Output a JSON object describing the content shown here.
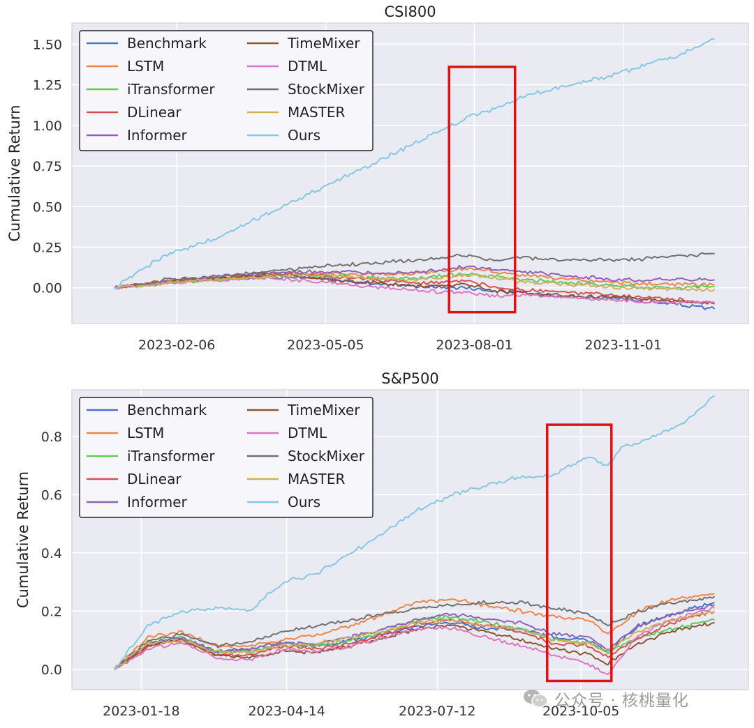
{
  "chart_data": [
    {
      "type": "line",
      "title": "CSI800",
      "ylabel": "Cumulative Return",
      "xlabel": "",
      "ylim": [
        -0.22,
        1.63
      ],
      "yticks": [
        0.0,
        0.25,
        0.5,
        0.75,
        1.0,
        1.25,
        1.5
      ],
      "ytick_labels": [
        "0.00",
        "0.25",
        "0.50",
        "0.75",
        "1.00",
        "1.25",
        "1.50"
      ],
      "xlim": [
        -25,
        375
      ],
      "xticks": [
        {
          "x": 37,
          "label": "2023-02-06"
        },
        {
          "x": 125,
          "label": "2023-05-05"
        },
        {
          "x": 213,
          "label": "2023-08-01"
        },
        {
          "x": 301,
          "label": "2023-11-01"
        }
      ],
      "grid": true,
      "legend_position": "upper left",
      "legend_columns": 2,
      "highlight_box": {
        "x_range": [
          198,
          237
        ],
        "y_range": [
          -0.15,
          1.36
        ],
        "color": "#e01010"
      },
      "series": [
        {
          "name": "Benchmark",
          "color": "#4a72c4",
          "x": [
            0,
            30,
            60,
            90,
            120,
            150,
            180,
            210,
            225,
            240,
            270,
            300,
            330,
            355
          ],
          "values": [
            0,
            0.03,
            0.05,
            0.07,
            0.06,
            0.03,
            0.01,
            0.0,
            -0.02,
            -0.03,
            -0.05,
            -0.07,
            -0.1,
            -0.13
          ]
        },
        {
          "name": "LSTM",
          "color": "#ee8544",
          "x": [
            0,
            30,
            60,
            90,
            120,
            150,
            180,
            210,
            225,
            240,
            270,
            300,
            330,
            355
          ],
          "values": [
            0,
            0.04,
            0.06,
            0.08,
            0.09,
            0.08,
            0.09,
            0.12,
            0.1,
            0.08,
            0.05,
            0.03,
            0.02,
            0.02
          ]
        },
        {
          "name": "iTransformer",
          "color": "#5ccc5c",
          "x": [
            0,
            30,
            60,
            90,
            120,
            150,
            180,
            210,
            225,
            240,
            270,
            300,
            330,
            355
          ],
          "values": [
            0,
            0.03,
            0.05,
            0.07,
            0.08,
            0.06,
            0.06,
            0.09,
            0.07,
            0.05,
            0.03,
            0.01,
            0.0,
            0.01
          ]
        },
        {
          "name": "DLinear",
          "color": "#d65050",
          "x": [
            0,
            30,
            60,
            90,
            120,
            150,
            180,
            210,
            225,
            240,
            270,
            300,
            330,
            355
          ],
          "values": [
            0,
            0.04,
            0.06,
            0.09,
            0.08,
            0.05,
            0.03,
            0.04,
            0.0,
            -0.01,
            -0.03,
            -0.05,
            -0.07,
            -0.1
          ]
        },
        {
          "name": "Informer",
          "color": "#8e61b8",
          "x": [
            0,
            30,
            60,
            90,
            120,
            150,
            180,
            210,
            225,
            240,
            270,
            300,
            330,
            355
          ],
          "values": [
            0,
            0.04,
            0.07,
            0.09,
            0.1,
            0.09,
            0.1,
            0.13,
            0.11,
            0.1,
            0.07,
            0.05,
            0.05,
            0.05
          ]
        },
        {
          "name": "TimeMixer",
          "color": "#8b5533",
          "x": [
            0,
            30,
            60,
            90,
            120,
            150,
            180,
            210,
            225,
            240,
            270,
            300,
            330,
            355
          ],
          "values": [
            0,
            0.04,
            0.06,
            0.08,
            0.06,
            0.03,
            0.01,
            0.02,
            -0.02,
            -0.03,
            -0.05,
            -0.06,
            -0.08,
            -0.09
          ]
        },
        {
          "name": "DTML",
          "color": "#dd77c0",
          "x": [
            0,
            30,
            60,
            90,
            120,
            150,
            180,
            210,
            225,
            240,
            270,
            300,
            330,
            355
          ],
          "values": [
            0,
            0.03,
            0.05,
            0.06,
            0.04,
            0.01,
            -0.02,
            -0.03,
            -0.05,
            -0.04,
            -0.06,
            -0.08,
            -0.09,
            -0.09
          ]
        },
        {
          "name": "StockMixer",
          "color": "#707070",
          "x": [
            0,
            30,
            60,
            90,
            120,
            150,
            180,
            210,
            225,
            240,
            270,
            300,
            330,
            355
          ],
          "values": [
            0,
            0.05,
            0.07,
            0.1,
            0.13,
            0.15,
            0.17,
            0.2,
            0.17,
            0.19,
            0.17,
            0.17,
            0.19,
            0.21
          ]
        },
        {
          "name": "MASTER",
          "color": "#d1ae58",
          "x": [
            0,
            30,
            60,
            90,
            120,
            150,
            180,
            210,
            225,
            240,
            270,
            300,
            330,
            355
          ],
          "values": [
            0,
            0.03,
            0.05,
            0.07,
            0.08,
            0.06,
            0.05,
            0.08,
            0.06,
            0.04,
            0.02,
            0.0,
            -0.01,
            -0.01
          ]
        },
        {
          "name": "Ours",
          "color": "#86c7e3",
          "x": [
            0,
            30,
            60,
            90,
            120,
            150,
            180,
            210,
            225,
            240,
            270,
            300,
            330,
            355
          ],
          "values": [
            0,
            0.2,
            0.3,
            0.45,
            0.6,
            0.75,
            0.9,
            1.05,
            1.1,
            1.17,
            1.25,
            1.32,
            1.42,
            1.53
          ]
        }
      ]
    },
    {
      "type": "line",
      "title": "S&P500",
      "ylabel": "Cumulative Return",
      "xlabel": "",
      "ylim": [
        -0.07,
        0.96
      ],
      "yticks": [
        0.0,
        0.2,
        0.4,
        0.6,
        0.8
      ],
      "ytick_labels": [
        "0.0",
        "0.2",
        "0.4",
        "0.6",
        "0.8"
      ],
      "xlim": [
        -25,
        375
      ],
      "xticks": [
        {
          "x": 16,
          "label": "2023-01-18"
        },
        {
          "x": 102,
          "label": "2023-04-14"
        },
        {
          "x": 191,
          "label": "2023-07-12"
        },
        {
          "x": 276,
          "label": "2023-10-05"
        }
      ],
      "grid": true,
      "legend_position": "upper left",
      "legend_columns": 2,
      "highlight_box": {
        "x_range": [
          256,
          294
        ],
        "y_range": [
          -0.04,
          0.84
        ],
        "color": "#e01010"
      },
      "series": [
        {
          "name": "Benchmark",
          "color": "#4a72c4",
          "x": [
            0,
            20,
            40,
            60,
            80,
            100,
            120,
            140,
            160,
            180,
            200,
            220,
            240,
            260,
            280,
            292,
            310,
            330,
            355
          ],
          "values": [
            0,
            0.09,
            0.1,
            0.06,
            0.07,
            0.09,
            0.08,
            0.1,
            0.12,
            0.15,
            0.16,
            0.14,
            0.14,
            0.11,
            0.1,
            0.06,
            0.15,
            0.19,
            0.23
          ]
        },
        {
          "name": "LSTM",
          "color": "#ee8544",
          "x": [
            0,
            20,
            40,
            60,
            80,
            100,
            120,
            140,
            160,
            180,
            200,
            220,
            240,
            260,
            280,
            292,
            310,
            330,
            355
          ],
          "values": [
            0,
            0.11,
            0.13,
            0.08,
            0.08,
            0.1,
            0.12,
            0.15,
            0.19,
            0.23,
            0.24,
            0.22,
            0.2,
            0.18,
            0.17,
            0.12,
            0.2,
            0.24,
            0.26
          ]
        },
        {
          "name": "iTransformer",
          "color": "#5ccc5c",
          "x": [
            0,
            20,
            40,
            60,
            80,
            100,
            120,
            140,
            160,
            180,
            200,
            220,
            240,
            260,
            280,
            292,
            310,
            330,
            355
          ],
          "values": [
            0,
            0.09,
            0.11,
            0.06,
            0.06,
            0.08,
            0.08,
            0.1,
            0.13,
            0.17,
            0.18,
            0.16,
            0.14,
            0.1,
            0.09,
            0.06,
            0.11,
            0.14,
            0.17
          ]
        },
        {
          "name": "DLinear",
          "color": "#d65050",
          "x": [
            0,
            20,
            40,
            60,
            80,
            100,
            120,
            140,
            160,
            180,
            200,
            220,
            240,
            260,
            280,
            292,
            310,
            330,
            355
          ],
          "values": [
            0,
            0.08,
            0.1,
            0.05,
            0.05,
            0.08,
            0.07,
            0.09,
            0.12,
            0.16,
            0.17,
            0.15,
            0.13,
            0.09,
            0.08,
            0.04,
            0.11,
            0.16,
            0.2
          ]
        },
        {
          "name": "Informer",
          "color": "#8e61b8",
          "x": [
            0,
            20,
            40,
            60,
            80,
            100,
            120,
            140,
            160,
            180,
            200,
            220,
            240,
            260,
            280,
            292,
            310,
            330,
            355
          ],
          "values": [
            0,
            0.09,
            0.11,
            0.06,
            0.07,
            0.09,
            0.09,
            0.11,
            0.14,
            0.17,
            0.19,
            0.17,
            0.16,
            0.12,
            0.11,
            0.07,
            0.15,
            0.19,
            0.22
          ]
        },
        {
          "name": "TimeMixer",
          "color": "#8b5533",
          "x": [
            0,
            20,
            40,
            60,
            80,
            100,
            120,
            140,
            160,
            180,
            200,
            220,
            240,
            260,
            280,
            292,
            310,
            330,
            355
          ],
          "values": [
            0,
            0.08,
            0.1,
            0.05,
            0.04,
            0.06,
            0.06,
            0.08,
            0.11,
            0.14,
            0.15,
            0.13,
            0.1,
            0.07,
            0.05,
            0.02,
            0.09,
            0.13,
            0.16
          ]
        },
        {
          "name": "DTML",
          "color": "#dd77c0",
          "x": [
            0,
            20,
            40,
            60,
            80,
            100,
            120,
            140,
            160,
            180,
            200,
            220,
            240,
            260,
            280,
            292,
            310,
            330,
            355
          ],
          "values": [
            0,
            0.07,
            0.09,
            0.04,
            0.03,
            0.07,
            0.06,
            0.08,
            0.11,
            0.14,
            0.14,
            0.11,
            0.08,
            0.05,
            0.02,
            -0.02,
            0.12,
            0.17,
            0.21
          ]
        },
        {
          "name": "StockMixer",
          "color": "#707070",
          "x": [
            0,
            20,
            40,
            60,
            80,
            100,
            120,
            140,
            160,
            180,
            200,
            220,
            240,
            260,
            280,
            292,
            310,
            330,
            355
          ],
          "values": [
            0,
            0.1,
            0.12,
            0.08,
            0.09,
            0.13,
            0.15,
            0.17,
            0.19,
            0.21,
            0.22,
            0.23,
            0.23,
            0.21,
            0.19,
            0.15,
            0.2,
            0.23,
            0.25
          ]
        },
        {
          "name": "MASTER",
          "color": "#d1ae58",
          "x": [
            0,
            20,
            40,
            60,
            80,
            100,
            120,
            140,
            160,
            180,
            200,
            220,
            240,
            260,
            280,
            292,
            310,
            330,
            355
          ],
          "values": [
            0,
            0.09,
            0.1,
            0.06,
            0.06,
            0.08,
            0.09,
            0.11,
            0.13,
            0.16,
            0.17,
            0.15,
            0.14,
            0.1,
            0.09,
            0.06,
            0.13,
            0.17,
            0.2
          ]
        },
        {
          "name": "Ours",
          "color": "#86c7e3",
          "x": [
            0,
            20,
            40,
            60,
            80,
            100,
            120,
            140,
            160,
            180,
            200,
            220,
            240,
            260,
            270,
            280,
            292,
            300,
            320,
            340,
            355
          ],
          "values": [
            0,
            0.15,
            0.2,
            0.21,
            0.2,
            0.3,
            0.33,
            0.4,
            0.47,
            0.55,
            0.6,
            0.63,
            0.66,
            0.67,
            0.7,
            0.73,
            0.7,
            0.76,
            0.8,
            0.86,
            0.94
          ]
        }
      ]
    }
  ],
  "watermark": {
    "text": "公众号 · 核桃量化",
    "icon": "wechat-icon"
  }
}
